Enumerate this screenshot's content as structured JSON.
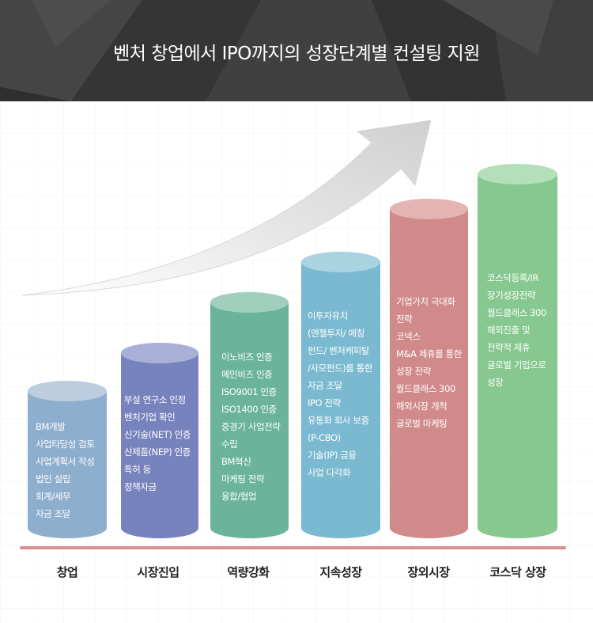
{
  "title": "벤처 창업에서 IPO까지의 성장단계별 컨설팅 지원",
  "stages": [
    {
      "label": "창업",
      "color": "#8eaece",
      "top_color": "#bccde0",
      "items": [
        "BM개발",
        "사업타당성 검토",
        "사업계획서 작성",
        "법인 설립",
        "회계/세무",
        "자금 조달"
      ]
    },
    {
      "label": "시장진입",
      "color": "#7783bd",
      "top_color": "#a9b0d7",
      "items": [
        "부설 연구소 인정",
        "벤처기업 확인",
        "신기술(NET) 인증",
        "신제품(NEP) 인증",
        "특허 등",
        "정책자금"
      ]
    },
    {
      "label": "역량강화",
      "color": "#6bb39b",
      "top_color": "#a1cfbd",
      "items": [
        "이노비즈 인증",
        "메인비즈 인증",
        "ISO9001 인증",
        "ISO1400 인증",
        "중경기 사업전략",
        "수립",
        "BM혁신",
        "마케팅 전략",
        "융합/협업"
      ]
    },
    {
      "label": "지속성장",
      "color": "#7ab9cf",
      "top_color": "#aad3e1",
      "items": [
        "이투자유치",
        "(엔젤투자/ 매칭",
        "펀드/ 벤처캐피탈",
        "/사모펀드)를 통한",
        "자금 조달",
        "IPO 전략",
        "유통화 회사 보증",
        "(P-CBO)",
        "기술(IP) 금융",
        "사업 다각화"
      ]
    },
    {
      "label": "장외시장",
      "color": "#d18a8a",
      "top_color": "#e3b4b1",
      "items": [
        "기업가치 극대화",
        "전략",
        "코넥스",
        "M&A 제휴를 통한",
        "성장 전략",
        "월드클래스 300",
        "해외시장 개척",
        "글로벌 마케팅"
      ]
    },
    {
      "label": "코스닥 상장",
      "color": "#86c88f",
      "top_color": "#b5dfb9",
      "items": [
        "코스닥등록/IR",
        "장기성장전략",
        "월드클래스 300",
        "해외진출 및",
        "전략적 제휴",
        "글로벌 기업으로",
        "성장"
      ]
    }
  ]
}
